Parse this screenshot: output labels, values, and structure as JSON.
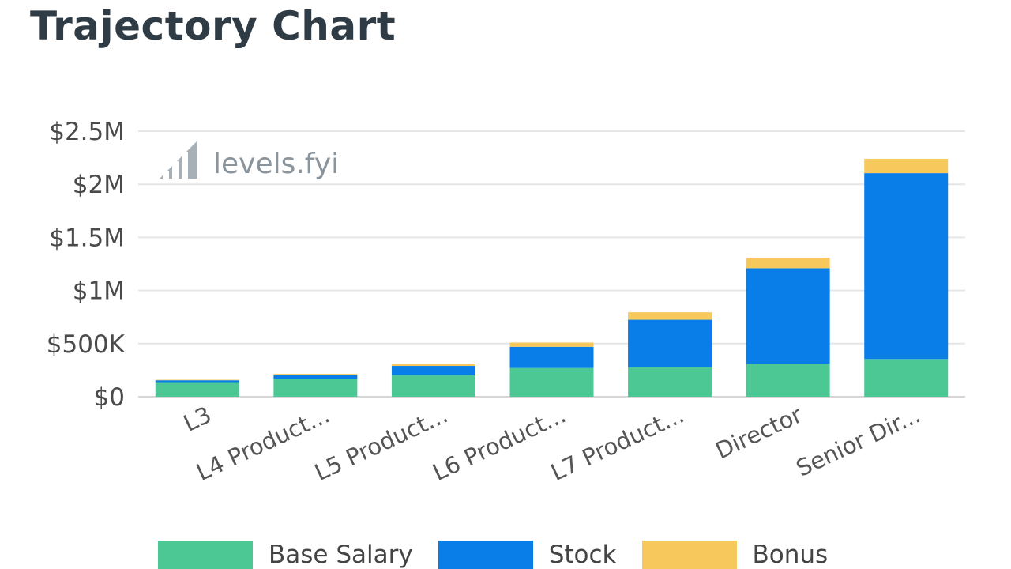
{
  "title": "Trajectory Chart",
  "watermark": "levels.fyi",
  "chart_data": {
    "type": "bar",
    "stacked": true,
    "categories": [
      "L3",
      "L4 Product...",
      "L5 Product...",
      "L6 Product...",
      "L7 Product...",
      "Director",
      "Senior Dir..."
    ],
    "series": [
      {
        "name": "Base Salary",
        "color": "#4cc894",
        "values": [
          130000,
          170000,
          200000,
          270000,
          275000,
          310000,
          355000
        ]
      },
      {
        "name": "Stock",
        "color": "#0a7ee8",
        "values": [
          25000,
          35000,
          90000,
          200000,
          450000,
          900000,
          1750000
        ]
      },
      {
        "name": "Bonus",
        "color": "#f7c85c",
        "values": [
          5000,
          10000,
          15000,
          40000,
          70000,
          100000,
          135000
        ]
      }
    ],
    "y_ticks": [
      "$0",
      "$500K",
      "$1M",
      "$1.5M",
      "$2M",
      "$2.5M"
    ],
    "ylim": [
      0,
      2500000
    ],
    "grid": true,
    "legend_position": "bottom"
  }
}
